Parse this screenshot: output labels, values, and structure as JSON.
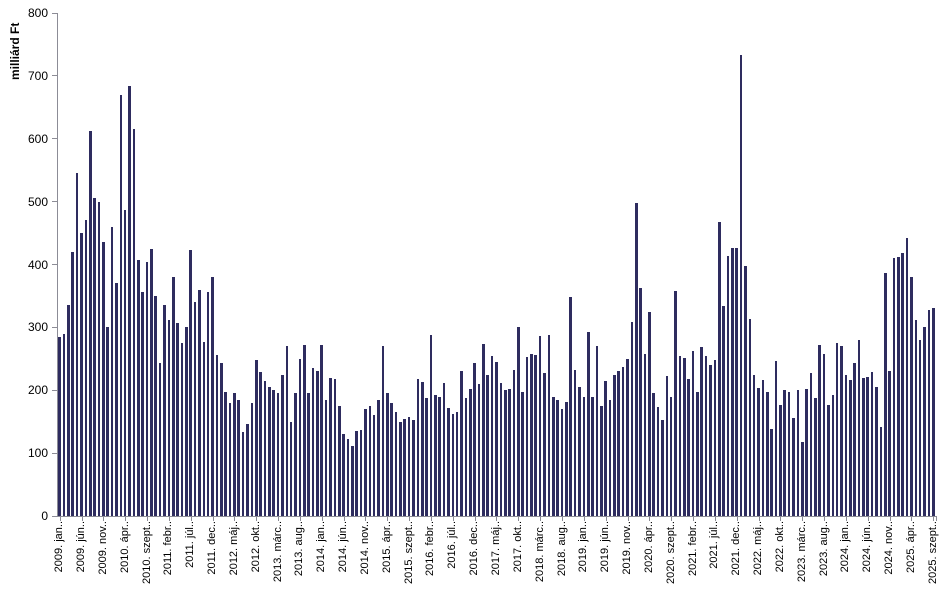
{
  "chart_data": {
    "type": "bar",
    "title": "",
    "y_axis_title": "milliárd Ft",
    "ylabel": "milliárd Ft",
    "xlabel": "",
    "ylim": [
      0,
      800
    ],
    "y_ticks": [
      0,
      100,
      200,
      300,
      400,
      500,
      600,
      700,
      800
    ],
    "grid": false,
    "legend": "none",
    "bar_color": "#2E2C5F",
    "axis_color": "#8C8C96",
    "x_start": "2009. jan.",
    "x_end": "2025. szept.",
    "x_tick_step": 5,
    "x_tick_labels": [
      "2009. jan..",
      "2009. jún..",
      "2009. nov..",
      "2010. ápr..",
      "2010. szept..",
      "2011. febr..",
      "2011. júl..",
      "2011. dec..",
      "2012. máj..",
      "2012. okt..",
      "2013. márc..",
      "2013. aug..",
      "2014. jan..",
      "2014. jún..",
      "2014. nov..",
      "2015. ápr..",
      "2015. szept..",
      "2016. febr..",
      "2016. júl..",
      "2016. dec..",
      "2017. máj..",
      "2017. okt..",
      "2018. márc..",
      "2018. aug..",
      "2019. jan..",
      "2019. jún..",
      "2019. nov..",
      "2020. ápr..",
      "2020. szept..",
      "2021. febr..",
      "2021. júl..",
      "2021. dec..",
      "2022. máj..",
      "2022. okt..",
      "2023. márc..",
      "2023. aug..",
      "2024. jan..",
      "2024. jún..",
      "2024. nov..",
      "2025. ápr..",
      "2025. szept.."
    ],
    "values": [
      285,
      290,
      335,
      420,
      545,
      450,
      470,
      612,
      505,
      500,
      435,
      300,
      460,
      370,
      669,
      486,
      684,
      616,
      407,
      357,
      404,
      425,
      350,
      243,
      335,
      312,
      380,
      307,
      275,
      301,
      423,
      340,
      359,
      277,
      356,
      380,
      256,
      243,
      198,
      180,
      195,
      185,
      134,
      147,
      180,
      248,
      229,
      215,
      205,
      200,
      195,
      225,
      270,
      150,
      195,
      250,
      272,
      195,
      235,
      230,
      272,
      185,
      220,
      218,
      175,
      130,
      122,
      112,
      135,
      137,
      170,
      175,
      160,
      185,
      270,
      195,
      180,
      165,
      150,
      155,
      157,
      152,
      218,
      213,
      188,
      288,
      193,
      190,
      212,
      172,
      162,
      165,
      230,
      188,
      202,
      243,
      210,
      273,
      225,
      255,
      245,
      211,
      200,
      202,
      232,
      300,
      197,
      253,
      258,
      256,
      287,
      227,
      288,
      190,
      185,
      170,
      182,
      348,
      232,
      205,
      190,
      293,
      190,
      270,
      175,
      215,
      185,
      225,
      230,
      237,
      250,
      308,
      498,
      363,
      258,
      325,
      196,
      174,
      153,
      222,
      190,
      358,
      255,
      252,
      218,
      262,
      198,
      268,
      255,
      240,
      248,
      467,
      334,
      413,
      427,
      426,
      733,
      397,
      313,
      225,
      203,
      217,
      198,
      139,
      246,
      176,
      200,
      198,
      156,
      200,
      118,
      202,
      227,
      188,
      272,
      257,
      176,
      192,
      275,
      270,
      224,
      216,
      243,
      280,
      219,
      221,
      229,
      205,
      142,
      386,
      230,
      410,
      412,
      418,
      442,
      380,
      312,
      280,
      300,
      328,
      331
    ]
  }
}
